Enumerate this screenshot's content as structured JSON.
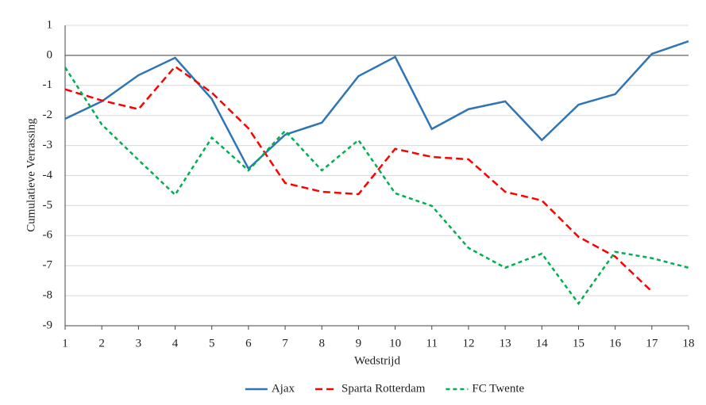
{
  "chart_data": {
    "type": "line",
    "x_label": "Wedstrijd",
    "y_label": "Cumulatieve Verrassing",
    "x": [
      1,
      2,
      3,
      4,
      5,
      6,
      7,
      8,
      9,
      10,
      11,
      12,
      13,
      14,
      15,
      16,
      17,
      18
    ],
    "xlim": [
      1,
      18
    ],
    "xticks": [
      1,
      2,
      3,
      4,
      5,
      6,
      7,
      8,
      9,
      10,
      11,
      12,
      13,
      14,
      15,
      16,
      17,
      18
    ],
    "ylim": [
      -9,
      1
    ],
    "yticks": [
      -9,
      -8,
      -7,
      -6,
      -5,
      -4,
      -3,
      -2,
      -1,
      0,
      1
    ],
    "grid": true,
    "legend": "bottom",
    "series": [
      {
        "name": "Ajax",
        "color": "#2e75b6",
        "values": [
          -2.11,
          -1.53,
          -0.66,
          -0.08,
          -1.45,
          -3.77,
          -2.64,
          -2.24,
          -0.69,
          -0.05,
          -2.45,
          -1.79,
          -1.53,
          -2.82,
          -1.64,
          -1.29,
          0.05,
          0.47
        ]
      },
      {
        "name": "Sparta Rotterdam",
        "color": "#ff0000",
        "values": [
          -1.13,
          -1.5,
          -1.79,
          -0.37,
          -1.24,
          -2.43,
          -4.25,
          -4.54,
          -4.62,
          -3.11,
          -3.38,
          -3.46,
          -4.54,
          -4.83,
          -6.04,
          -6.7,
          -7.86,
          null
        ]
      },
      {
        "name": "FC Twente",
        "color": "#00b050",
        "values": [
          -0.4,
          -2.3,
          -3.48,
          -4.64,
          -2.74,
          -3.83,
          -2.51,
          -3.83,
          -2.82,
          -4.59,
          -5.01,
          -6.41,
          -7.07,
          -6.6,
          -8.26,
          -6.54,
          -6.75,
          -7.07
        ]
      }
    ]
  }
}
